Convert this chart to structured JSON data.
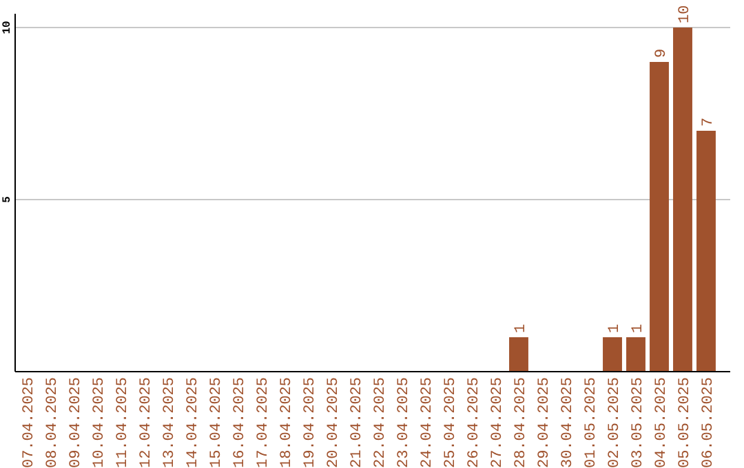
{
  "chart_data": {
    "type": "bar",
    "categories": [
      "07.04.2025",
      "08.04.2025",
      "09.04.2025",
      "10.04.2025",
      "11.04.2025",
      "12.04.2025",
      "13.04.2025",
      "14.04.2025",
      "15.04.2025",
      "16.04.2025",
      "17.04.2025",
      "18.04.2025",
      "19.04.2025",
      "20.04.2025",
      "21.04.2025",
      "22.04.2025",
      "23.04.2025",
      "24.04.2025",
      "25.04.2025",
      "26.04.2025",
      "27.04.2025",
      "28.04.2025",
      "29.04.2025",
      "30.04.2025",
      "01.05.2025",
      "02.05.2025",
      "03.05.2025",
      "04.05.2025",
      "05.05.2025",
      "06.05.2025"
    ],
    "values": [
      0,
      0,
      0,
      0,
      0,
      0,
      0,
      0,
      0,
      0,
      0,
      0,
      0,
      0,
      0,
      0,
      0,
      0,
      0,
      0,
      0,
      1,
      0,
      0,
      0,
      1,
      1,
      9,
      10,
      7
    ],
    "value_labels": [
      null,
      null,
      null,
      null,
      null,
      null,
      null,
      null,
      null,
      null,
      null,
      null,
      null,
      null,
      null,
      null,
      null,
      null,
      null,
      null,
      null,
      "1",
      null,
      null,
      null,
      "1",
      "1",
      "9",
      "10",
      "7"
    ],
    "color": "#a0522d",
    "ylim": [
      0,
      10.4
    ],
    "yticks": [
      5,
      10
    ],
    "grid": "y"
  }
}
